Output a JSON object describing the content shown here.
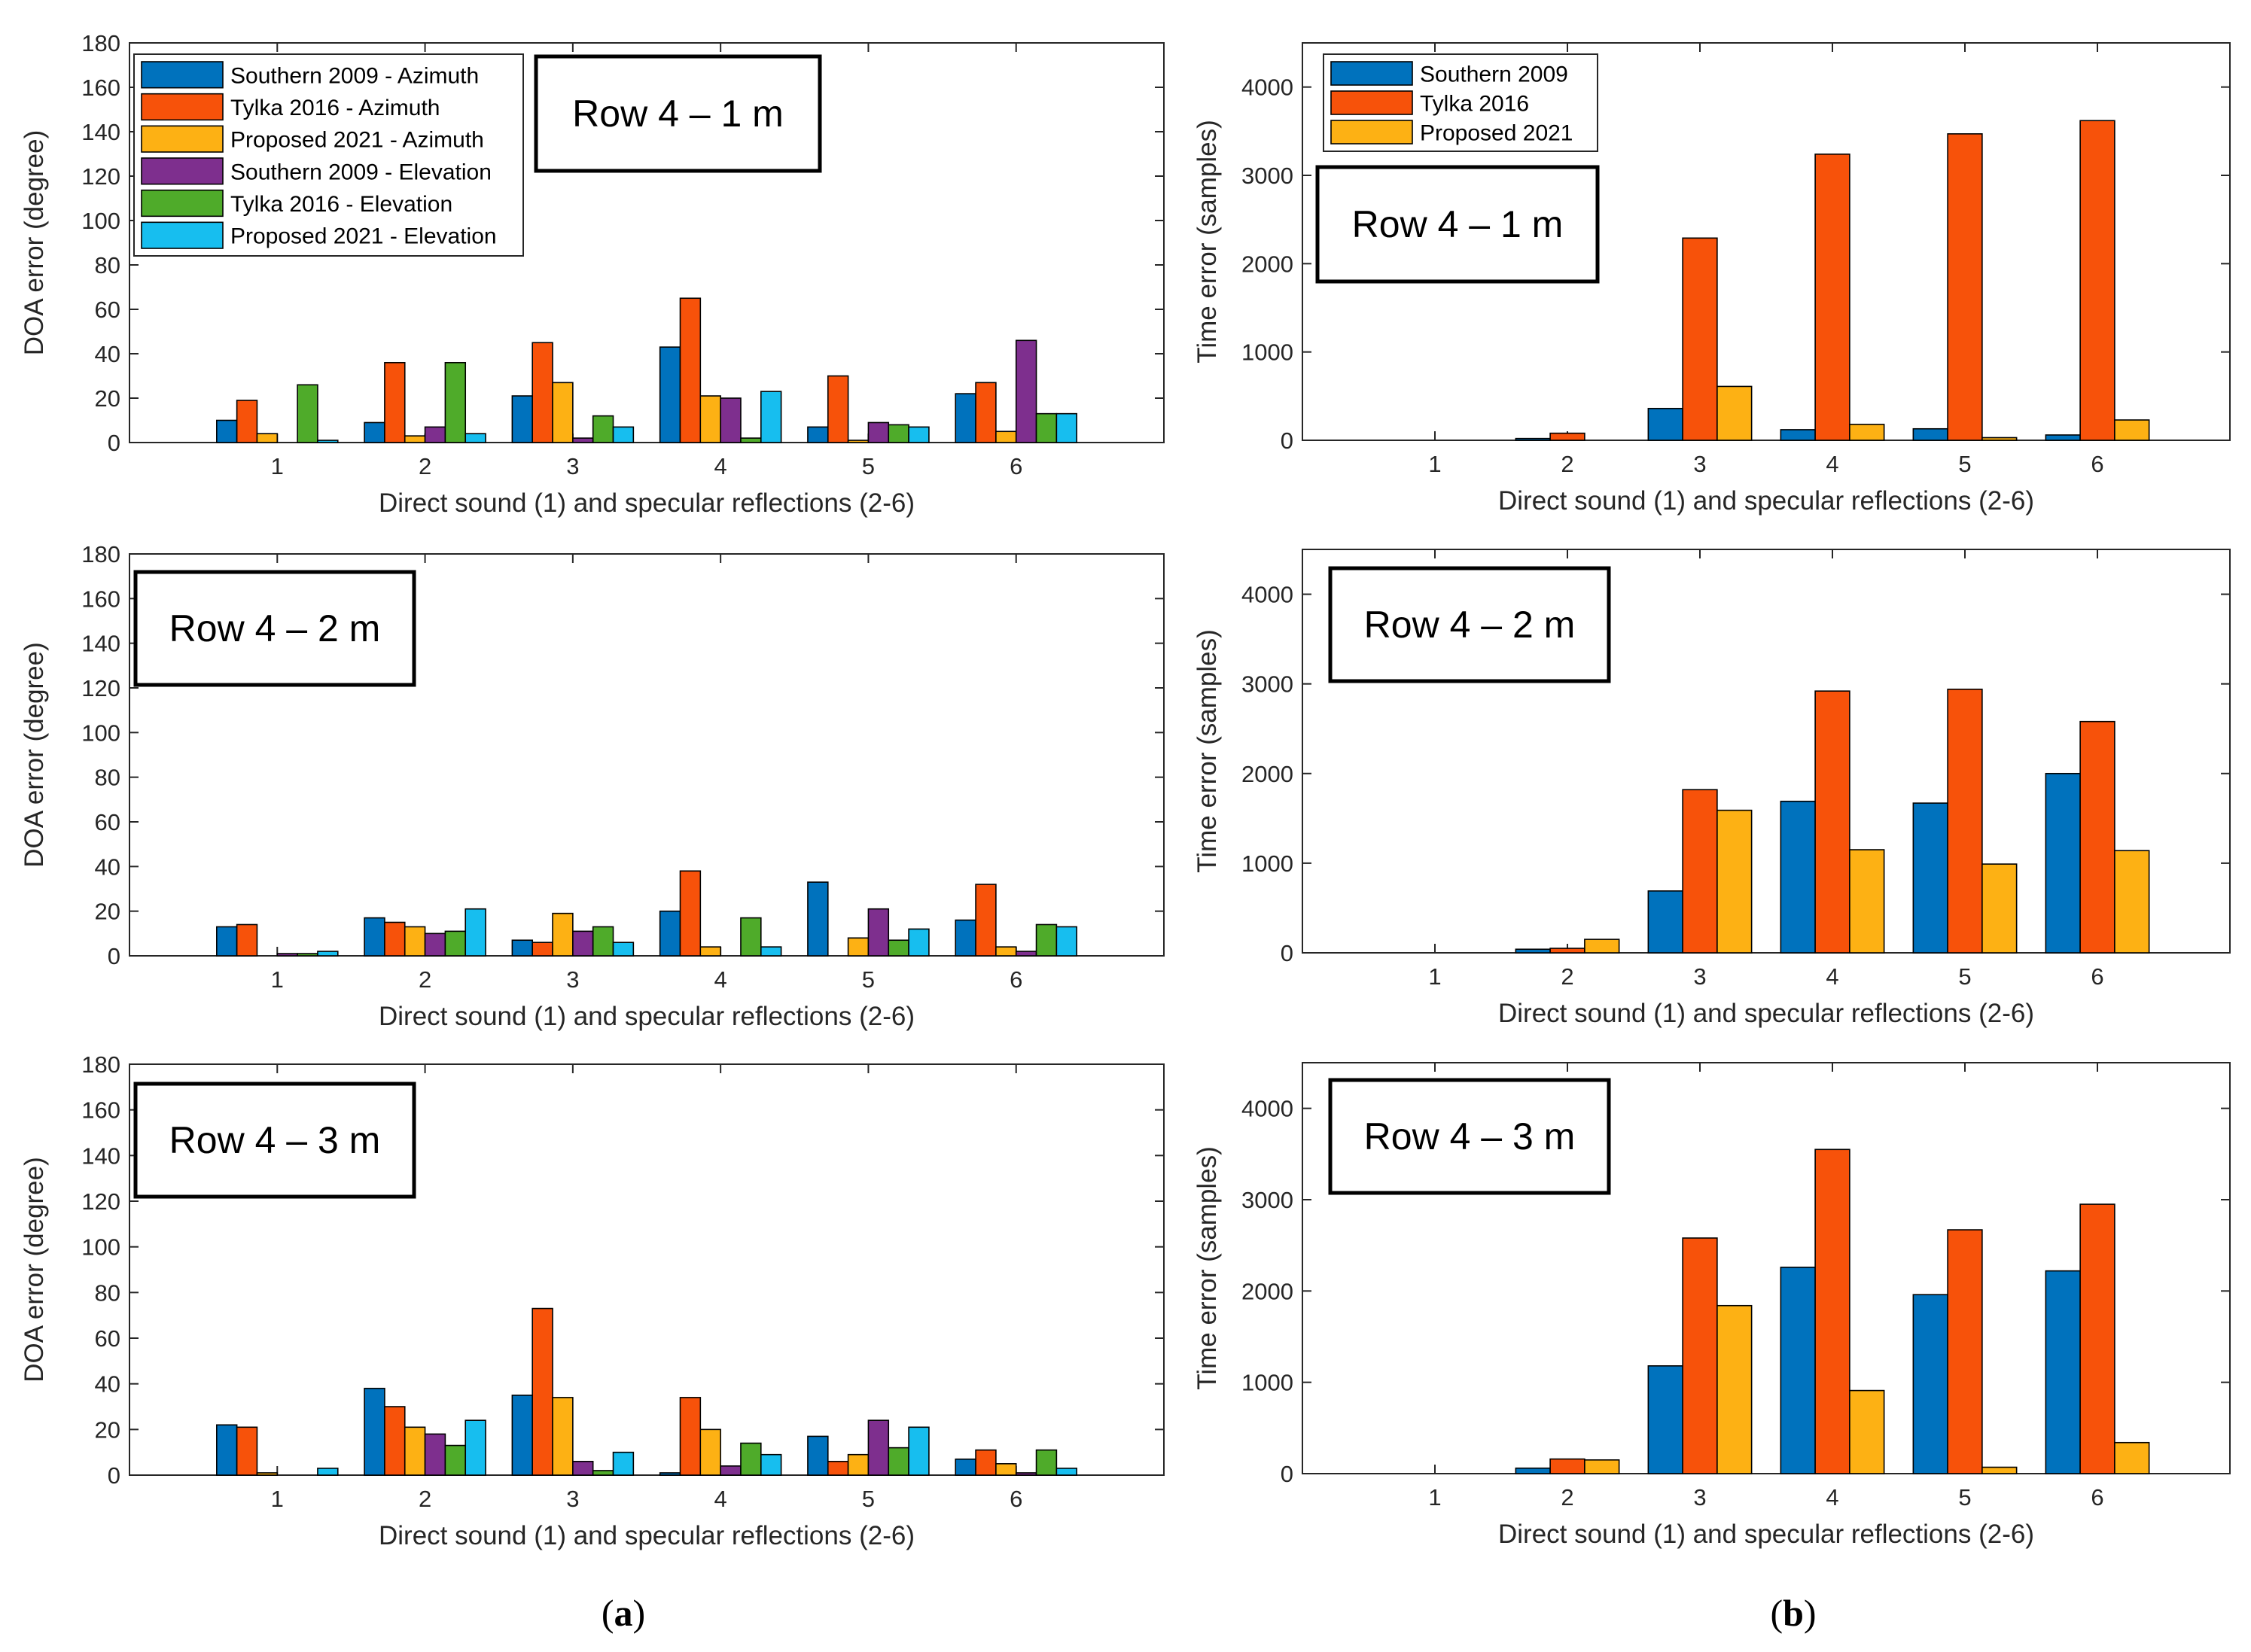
{
  "caption_a": "a",
  "caption_b": "b",
  "colors": {
    "blue": "#0072BD",
    "orange": "#F7520A",
    "yellow": "#FDB114",
    "purple": "#7E2F8E",
    "green": "#4FAB2A",
    "cyan": "#17BEEF"
  },
  "chart_data": [
    {
      "id": "a1",
      "type": "bar",
      "title": "Row 4 – 1 m",
      "xlabel": "Direct sound (1) and specular reflections (2-6)",
      "ylabel": "DOA error (degree)",
      "categories": [
        "1",
        "2",
        "3",
        "4",
        "5",
        "6"
      ],
      "ylim": [
        0,
        180
      ],
      "yticks": [
        0,
        20,
        40,
        60,
        80,
        100,
        120,
        140,
        160,
        180
      ],
      "legend": "top-left",
      "series": [
        {
          "name": "Southern 2009 - Azimuth",
          "color": "blue",
          "values": [
            10,
            9,
            21,
            43,
            7,
            22
          ]
        },
        {
          "name": "Tylka 2016 - Azimuth",
          "color": "orange",
          "values": [
            19,
            36,
            45,
            65,
            30,
            27
          ]
        },
        {
          "name": "Proposed 2021 - Azimuth",
          "color": "yellow",
          "values": [
            4,
            3,
            27,
            21,
            1,
            5
          ]
        },
        {
          "name": "Southern 2009 - Elevation",
          "color": "purple",
          "values": [
            0,
            7,
            2,
            20,
            9,
            46
          ]
        },
        {
          "name": "Tylka 2016 - Elevation",
          "color": "green",
          "values": [
            26,
            36,
            12,
            2,
            8,
            13
          ]
        },
        {
          "name": "Proposed 2021 - Elevation",
          "color": "cyan",
          "values": [
            1,
            4,
            7,
            23,
            7,
            13
          ]
        }
      ]
    },
    {
      "id": "b1",
      "type": "bar",
      "title": "Row 4 – 1 m",
      "xlabel": "Direct sound (1) and specular reflections (2-6)",
      "ylabel": "Time error (samples)",
      "categories": [
        "1",
        "2",
        "3",
        "4",
        "5",
        "6"
      ],
      "ylim": [
        0,
        4500
      ],
      "yticks": [
        0,
        1000,
        2000,
        3000,
        4000
      ],
      "legend": "top-left",
      "series": [
        {
          "name": "Southern 2009",
          "color": "blue",
          "values": [
            0,
            20,
            360,
            120,
            130,
            60
          ]
        },
        {
          "name": "Tylka 2016",
          "color": "orange",
          "values": [
            0,
            80,
            2290,
            3240,
            3470,
            3620
          ]
        },
        {
          "name": "Proposed 2021",
          "color": "yellow",
          "values": [
            0,
            0,
            610,
            180,
            30,
            230
          ]
        }
      ]
    },
    {
      "id": "a2",
      "type": "bar",
      "title": "Row 4 – 2 m",
      "xlabel": "Direct sound (1) and specular reflections (2-6)",
      "ylabel": "DOA error (degree)",
      "categories": [
        "1",
        "2",
        "3",
        "4",
        "5",
        "6"
      ],
      "ylim": [
        0,
        180
      ],
      "yticks": [
        0,
        20,
        40,
        60,
        80,
        100,
        120,
        140,
        160,
        180
      ],
      "series": [
        {
          "name": "Southern 2009 - Azimuth",
          "color": "blue",
          "values": [
            13,
            17,
            7,
            20,
            33,
            16
          ]
        },
        {
          "name": "Tylka 2016 - Azimuth",
          "color": "orange",
          "values": [
            14,
            15,
            6,
            38,
            0,
            32
          ]
        },
        {
          "name": "Proposed 2021 - Azimuth",
          "color": "yellow",
          "values": [
            0,
            13,
            19,
            4,
            8,
            4
          ]
        },
        {
          "name": "Southern 2009 - Elevation",
          "color": "purple",
          "values": [
            1,
            10,
            11,
            0,
            21,
            2
          ]
        },
        {
          "name": "Tylka 2016 - Elevation",
          "color": "green",
          "values": [
            1,
            11,
            13,
            17,
            7,
            14
          ]
        },
        {
          "name": "Proposed 2021 - Elevation",
          "color": "cyan",
          "values": [
            2,
            21,
            6,
            4,
            12,
            13
          ]
        }
      ]
    },
    {
      "id": "b2",
      "type": "bar",
      "title": "Row 4 – 2 m",
      "xlabel": "Direct sound (1) and specular reflections (2-6)",
      "ylabel": "Time error (samples)",
      "categories": [
        "1",
        "2",
        "3",
        "4",
        "5",
        "6"
      ],
      "ylim": [
        0,
        4500
      ],
      "yticks": [
        0,
        1000,
        2000,
        3000,
        4000
      ],
      "series": [
        {
          "name": "Southern 2009",
          "color": "blue",
          "values": [
            0,
            40,
            690,
            1690,
            1670,
            2000
          ]
        },
        {
          "name": "Tylka 2016",
          "color": "orange",
          "values": [
            0,
            50,
            1820,
            2920,
            2940,
            2580
          ]
        },
        {
          "name": "Proposed 2021",
          "color": "yellow",
          "values": [
            0,
            150,
            1590,
            1150,
            990,
            1140
          ]
        }
      ]
    },
    {
      "id": "a3",
      "type": "bar",
      "title": "Row 4 – 3 m",
      "xlabel": "Direct sound (1) and specular reflections (2-6)",
      "ylabel": "DOA error (degree)",
      "categories": [
        "1",
        "2",
        "3",
        "4",
        "5",
        "6"
      ],
      "ylim": [
        0,
        180
      ],
      "yticks": [
        0,
        20,
        40,
        60,
        80,
        100,
        120,
        140,
        160,
        180
      ],
      "series": [
        {
          "name": "Southern 2009 - Azimuth",
          "color": "blue",
          "values": [
            22,
            38,
            35,
            1,
            17,
            7
          ]
        },
        {
          "name": "Tylka 2016 - Azimuth",
          "color": "orange",
          "values": [
            21,
            30,
            73,
            34,
            6,
            11
          ]
        },
        {
          "name": "Proposed 2021 - Azimuth",
          "color": "yellow",
          "values": [
            1,
            21,
            34,
            20,
            9,
            5
          ]
        },
        {
          "name": "Southern 2009 - Elevation",
          "color": "purple",
          "values": [
            0,
            18,
            6,
            4,
            24,
            1
          ]
        },
        {
          "name": "Tylka 2016 - Elevation",
          "color": "green",
          "values": [
            0,
            13,
            2,
            14,
            12,
            11
          ]
        },
        {
          "name": "Proposed 2021 - Elevation",
          "color": "cyan",
          "values": [
            3,
            24,
            10,
            9,
            21,
            3
          ]
        }
      ]
    },
    {
      "id": "b3",
      "type": "bar",
      "title": "Row 4 – 3 m",
      "xlabel": "Direct sound (1) and specular reflections (2-6)",
      "ylabel": "Time error (samples)",
      "categories": [
        "1",
        "2",
        "3",
        "4",
        "5",
        "6"
      ],
      "ylim": [
        0,
        4500
      ],
      "yticks": [
        0,
        1000,
        2000,
        3000,
        4000
      ],
      "series": [
        {
          "name": "Southern 2009",
          "color": "blue",
          "values": [
            0,
            60,
            1180,
            2260,
            1960,
            2220
          ]
        },
        {
          "name": "Tylka 2016",
          "color": "orange",
          "values": [
            0,
            160,
            2580,
            3550,
            2670,
            2950
          ]
        },
        {
          "name": "Proposed 2021",
          "color": "yellow",
          "values": [
            0,
            150,
            1840,
            910,
            70,
            340
          ]
        }
      ]
    }
  ]
}
